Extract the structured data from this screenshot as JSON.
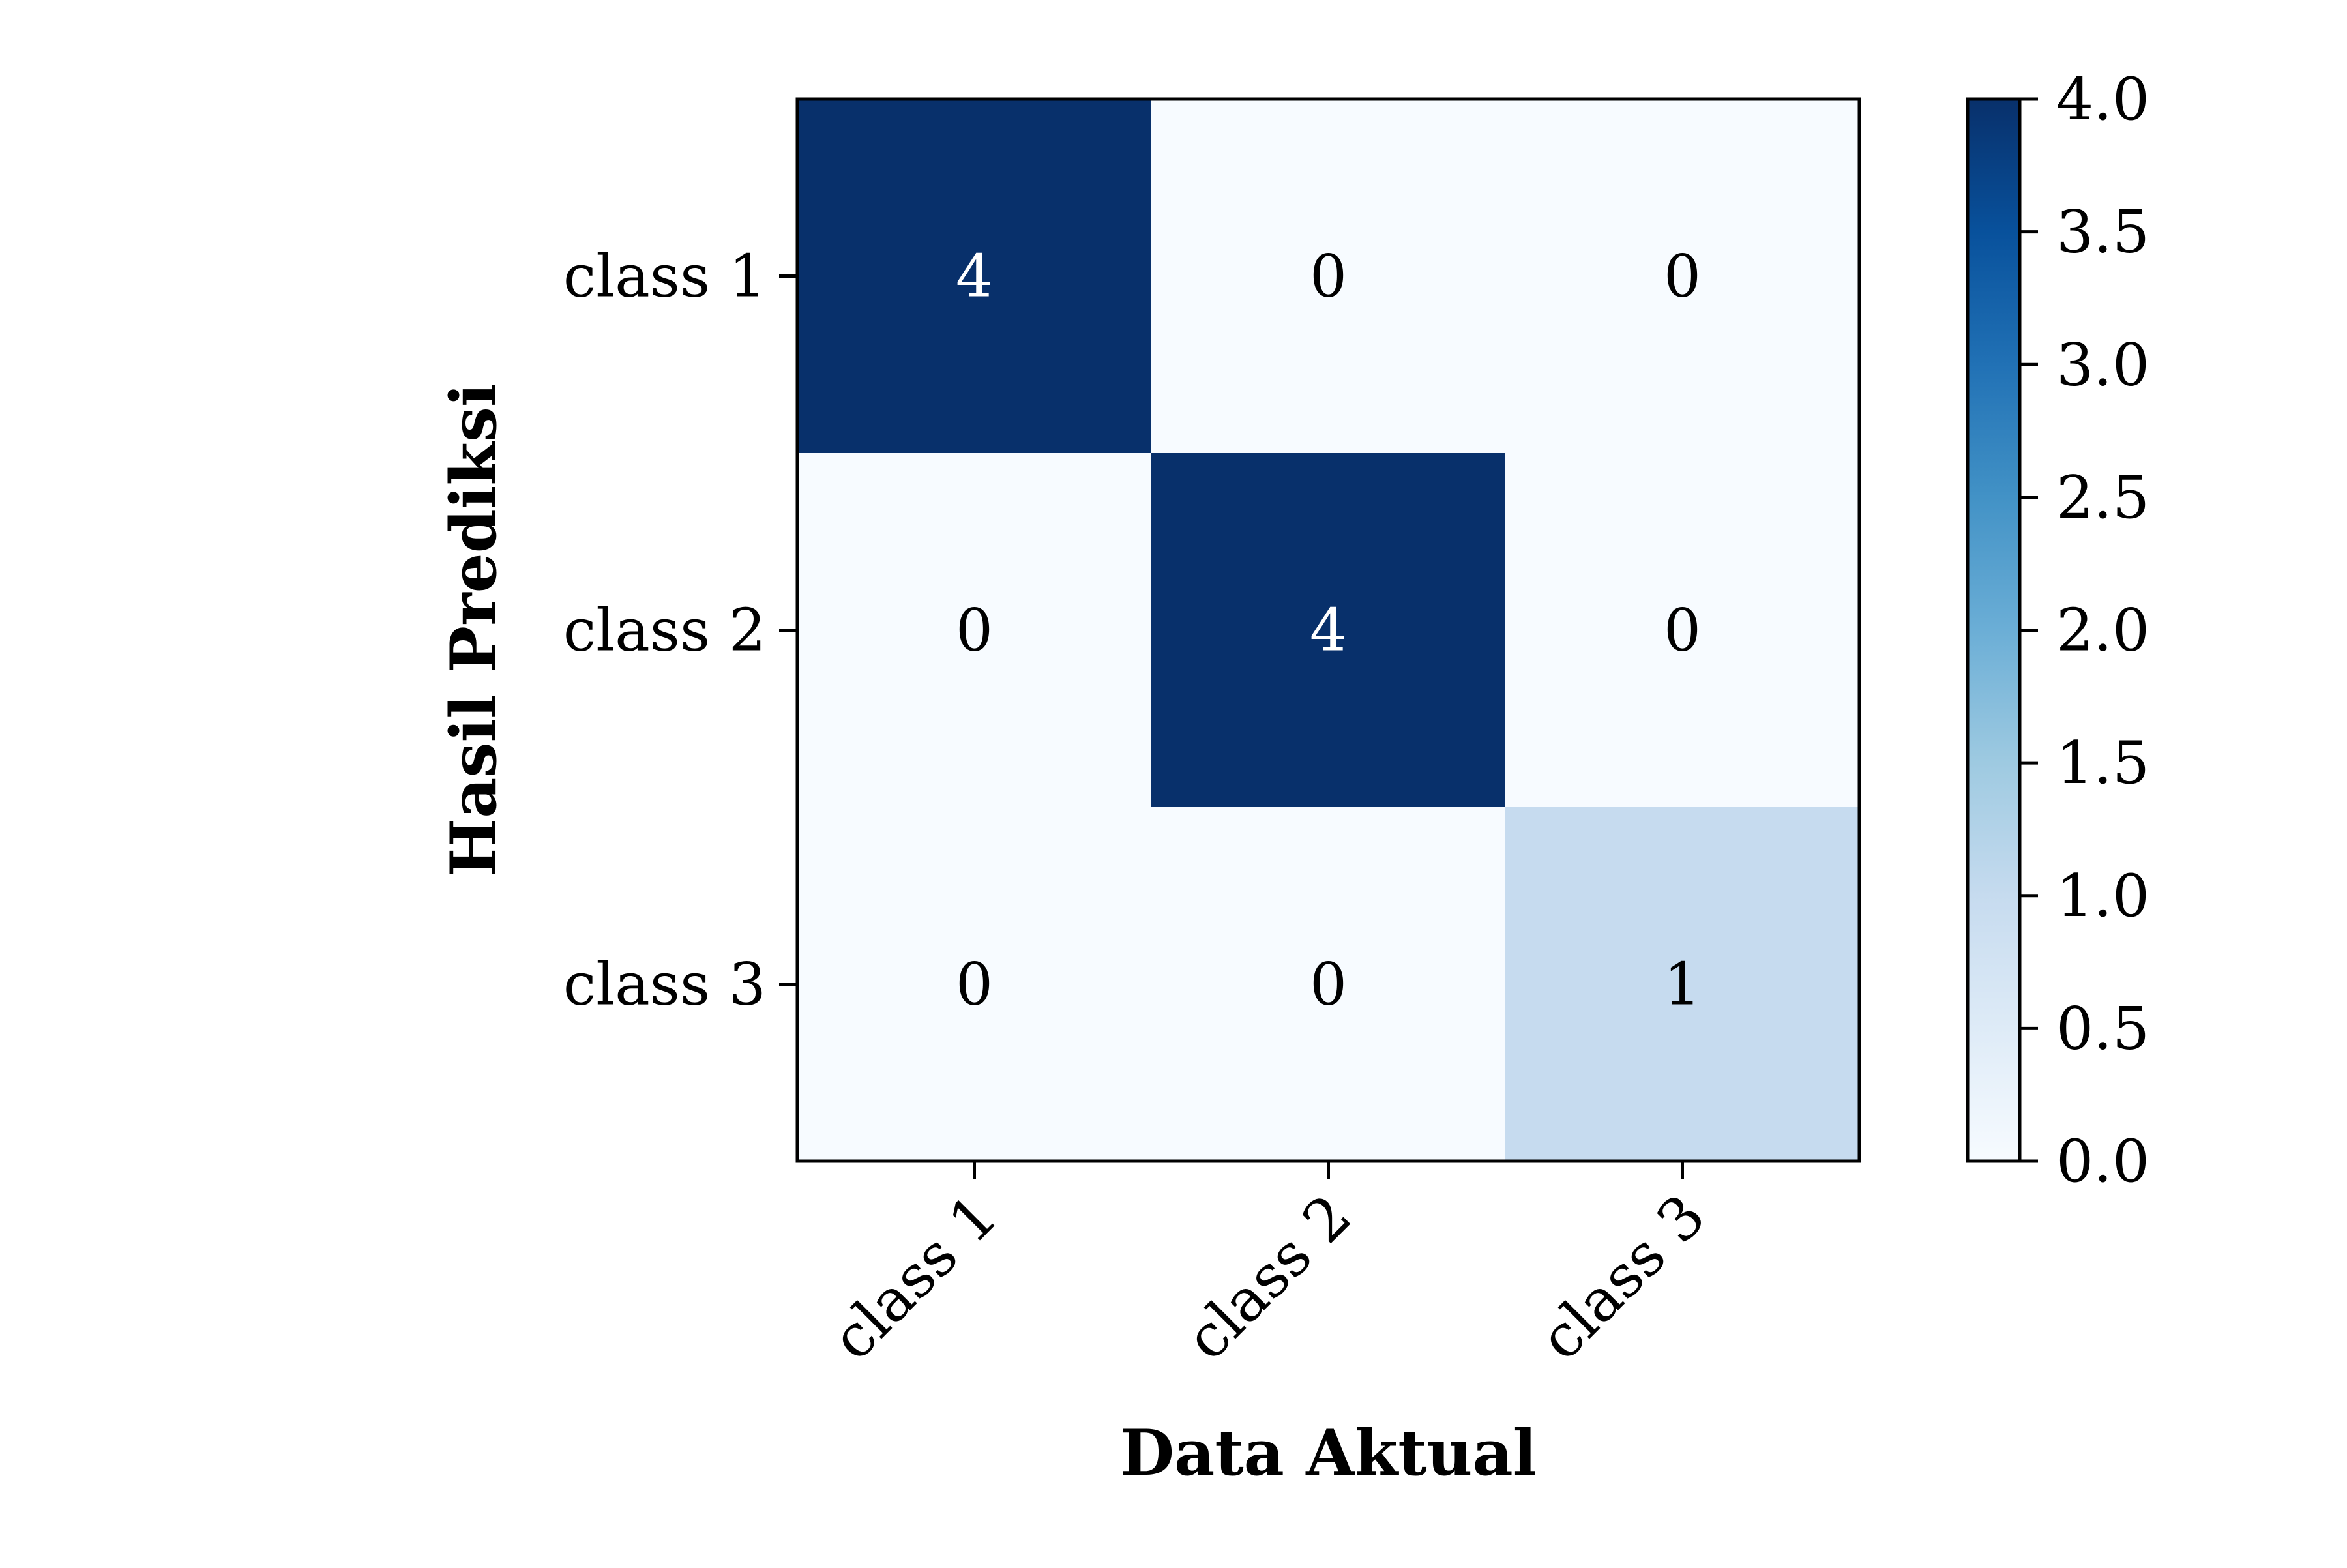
{
  "chart_data": {
    "type": "heatmap",
    "title": "",
    "xlabel": "Data Aktual",
    "ylabel": "Hasil Prediksi",
    "x_categories": [
      "class 1",
      "class 2",
      "class 3"
    ],
    "y_categories": [
      "class 1",
      "class 2",
      "class 3"
    ],
    "matrix": [
      [
        4,
        0,
        0
      ],
      [
        0,
        4,
        0
      ],
      [
        0,
        0,
        1
      ]
    ],
    "colormap": "Blues",
    "vmin": 0,
    "vmax": 4,
    "colorbar_ticks": [
      "0.0",
      "0.5",
      "1.0",
      "1.5",
      "2.0",
      "2.5",
      "3.0",
      "3.5",
      "4.0"
    ],
    "colors": {
      "low": "#f7fbff",
      "high": "#08306b",
      "text_dark": "#000000",
      "text_light": "#ffffff"
    }
  }
}
